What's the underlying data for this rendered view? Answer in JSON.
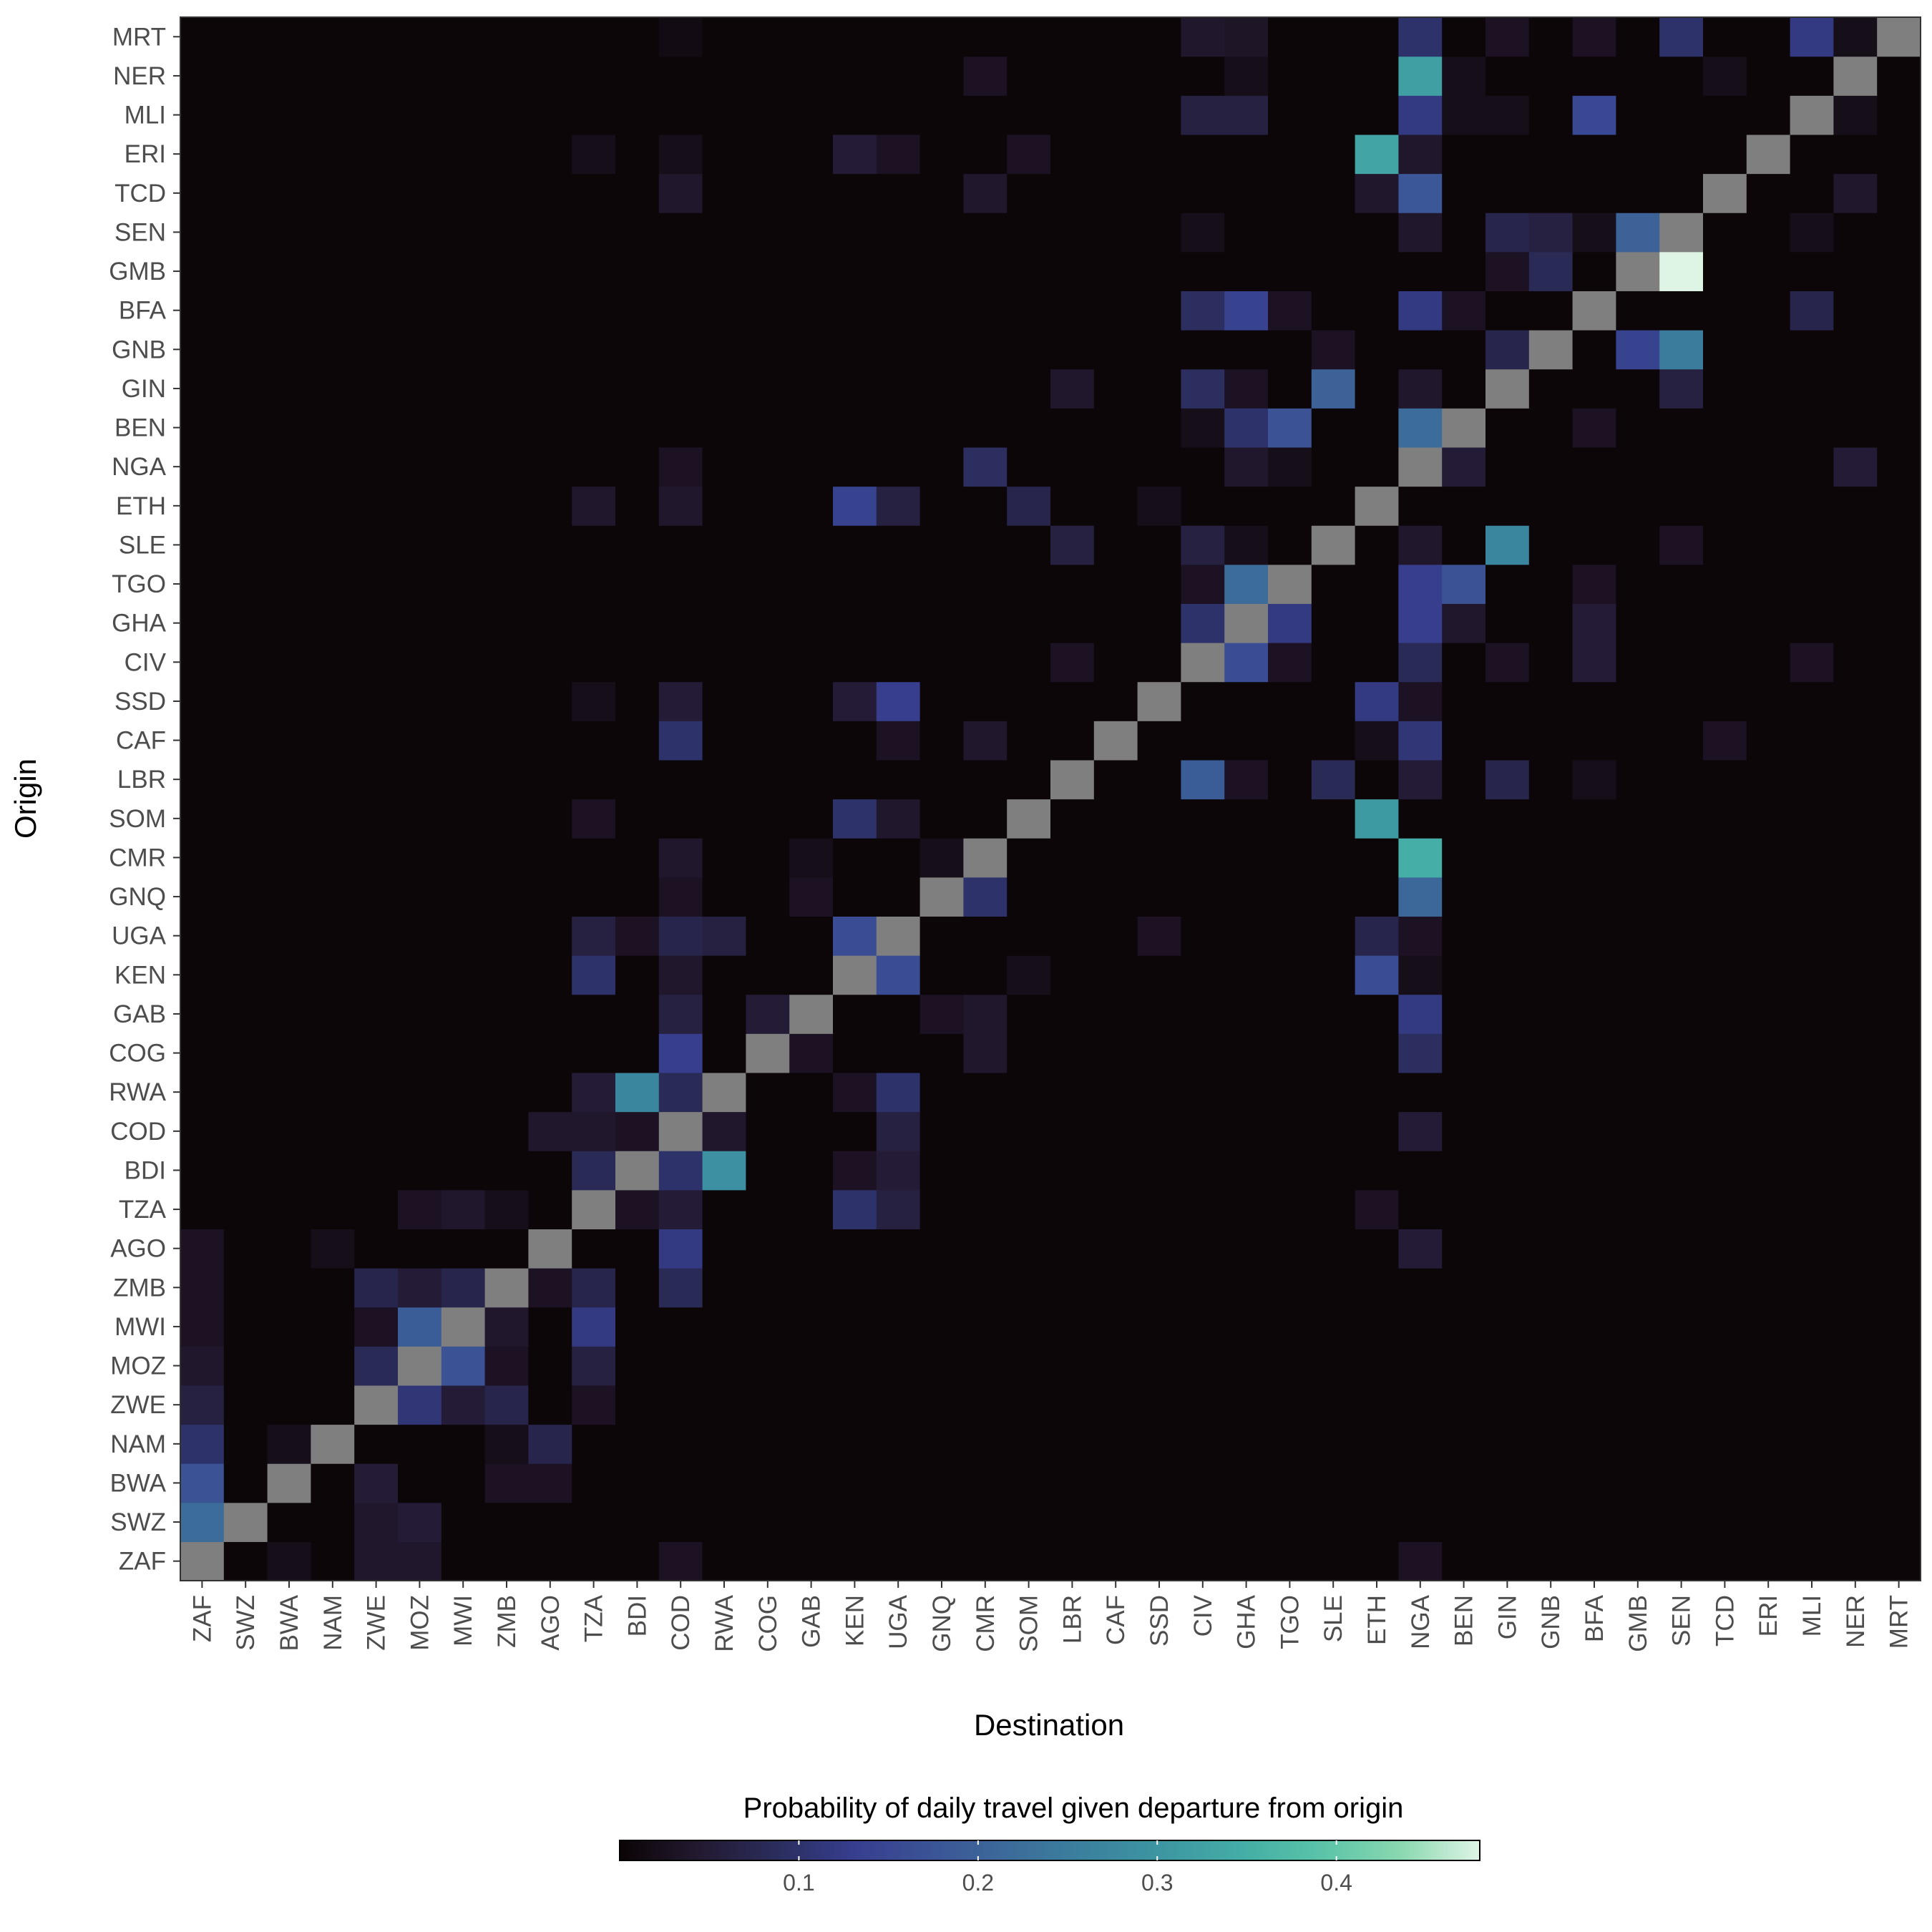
{
  "chart_data": {
    "type": "heatmap",
    "title": "",
    "xlabel": "Destination",
    "ylabel": "Origin",
    "x_categories": [
      "ZAF",
      "SWZ",
      "BWA",
      "NAM",
      "ZWE",
      "MOZ",
      "MWI",
      "ZMB",
      "AGO",
      "TZA",
      "BDI",
      "COD",
      "RWA",
      "COG",
      "GAB",
      "KEN",
      "UGA",
      "GNQ",
      "CMR",
      "SOM",
      "LBR",
      "CAF",
      "SSD",
      "CIV",
      "GHA",
      "TGO",
      "SLE",
      "ETH",
      "NGA",
      "BEN",
      "GIN",
      "GNB",
      "BFA",
      "GMB",
      "SEN",
      "TCD",
      "ERI",
      "MLI",
      "NER",
      "MRT"
    ],
    "y_categories": [
      "ZAF",
      "SWZ",
      "BWA",
      "NAM",
      "ZWE",
      "MOZ",
      "MWI",
      "ZMB",
      "AGO",
      "TZA",
      "BDI",
      "COD",
      "RWA",
      "COG",
      "GAB",
      "KEN",
      "UGA",
      "GNQ",
      "CMR",
      "SOM",
      "LBR",
      "CAF",
      "SSD",
      "CIV",
      "GHA",
      "TGO",
      "SLE",
      "ETH",
      "NGA",
      "BEN",
      "GIN",
      "GNB",
      "BFA",
      "GMB",
      "SEN",
      "TCD",
      "ERI",
      "MLI",
      "NER",
      "MRT"
    ],
    "diagonal": "NA (grey)",
    "na_color": "#7f7f7f",
    "default_value": 0.004,
    "cells": [
      [
        "MRT",
        "CIV",
        0.04
      ],
      [
        "MRT",
        "GHA",
        0.035
      ],
      [
        "MRT",
        "NGA",
        0.1
      ],
      [
        "MRT",
        "GIN",
        0.03
      ],
      [
        "MRT",
        "BFA",
        0.03
      ],
      [
        "MRT",
        "SEN",
        0.1
      ],
      [
        "MRT",
        "MLI",
        0.12
      ],
      [
        "MRT",
        "NER",
        0.02
      ],
      [
        "MRT",
        "COD",
        0.015
      ],
      [
        "NER",
        "NGA",
        0.32
      ],
      [
        "NER",
        "CMR",
        0.03
      ],
      [
        "NER",
        "GHA",
        0.02
      ],
      [
        "NER",
        "TCD",
        0.02
      ],
      [
        "NER",
        "BEN",
        0.02
      ],
      [
        "MLI",
        "CIV",
        0.06
      ],
      [
        "MLI",
        "GHA",
        0.06
      ],
      [
        "MLI",
        "NGA",
        0.12
      ],
      [
        "MLI",
        "BFA",
        0.15
      ],
      [
        "MLI",
        "BEN",
        0.02
      ],
      [
        "MLI",
        "GIN",
        0.02
      ],
      [
        "MLI",
        "NER",
        0.02
      ],
      [
        "ERI",
        "ETH",
        0.33
      ],
      [
        "ERI",
        "KEN",
        0.05
      ],
      [
        "ERI",
        "UGA",
        0.03
      ],
      [
        "ERI",
        "NGA",
        0.04
      ],
      [
        "ERI",
        "SOM",
        0.03
      ],
      [
        "ERI",
        "TZA",
        0.02
      ],
      [
        "ERI",
        "COD",
        0.02
      ],
      [
        "TCD",
        "NGA",
        0.18
      ],
      [
        "TCD",
        "ETH",
        0.04
      ],
      [
        "TCD",
        "CMR",
        0.04
      ],
      [
        "TCD",
        "COD",
        0.04
      ],
      [
        "TCD",
        "NER",
        0.04
      ],
      [
        "SEN",
        "GMB",
        0.2
      ],
      [
        "SEN",
        "GIN",
        0.07
      ],
      [
        "SEN",
        "GNB",
        0.06
      ],
      [
        "SEN",
        "NGA",
        0.04
      ],
      [
        "SEN",
        "MLI",
        0.02
      ],
      [
        "SEN",
        "CIV",
        0.02
      ],
      [
        "SEN",
        "BFA",
        0.02
      ],
      [
        "GMB",
        "SEN",
        0.48
      ],
      [
        "GMB",
        "GNB",
        0.08
      ],
      [
        "GMB",
        "GIN",
        0.03
      ],
      [
        "BFA",
        "CIV",
        0.09
      ],
      [
        "BFA",
        "GHA",
        0.14
      ],
      [
        "BFA",
        "NGA",
        0.12
      ],
      [
        "BFA",
        "MLI",
        0.07
      ],
      [
        "BFA",
        "TGO",
        0.03
      ],
      [
        "BFA",
        "BEN",
        0.03
      ],
      [
        "GNB",
        "SEN",
        0.25
      ],
      [
        "GNB",
        "GMB",
        0.14
      ],
      [
        "GNB",
        "GIN",
        0.07
      ],
      [
        "GNB",
        "SLE",
        0.03
      ],
      [
        "GIN",
        "SLE",
        0.2
      ],
      [
        "GIN",
        "CIV",
        0.09
      ],
      [
        "GIN",
        "SEN",
        0.06
      ],
      [
        "GIN",
        "LBR",
        0.04
      ],
      [
        "GIN",
        "NGA",
        0.04
      ],
      [
        "GIN",
        "GHA",
        0.03
      ],
      [
        "BEN",
        "NGA",
        0.22
      ],
      [
        "BEN",
        "TGO",
        0.17
      ],
      [
        "BEN",
        "GHA",
        0.1
      ],
      [
        "BEN",
        "BFA",
        0.03
      ],
      [
        "BEN",
        "CIV",
        0.02
      ],
      [
        "NGA",
        "CMR",
        0.09
      ],
      [
        "NGA",
        "BEN",
        0.05
      ],
      [
        "NGA",
        "GHA",
        0.04
      ],
      [
        "NGA",
        "NER",
        0.05
      ],
      [
        "NGA",
        "COD",
        0.03
      ],
      [
        "NGA",
        "TGO",
        0.02
      ],
      [
        "ETH",
        "KEN",
        0.14
      ],
      [
        "ETH",
        "UGA",
        0.06
      ],
      [
        "ETH",
        "SOM",
        0.07
      ],
      [
        "ETH",
        "TZA",
        0.04
      ],
      [
        "ETH",
        "COD",
        0.04
      ],
      [
        "ETH",
        "SSD",
        0.02
      ],
      [
        "SLE",
        "GIN",
        0.27
      ],
      [
        "SLE",
        "LBR",
        0.06
      ],
      [
        "SLE",
        "CIV",
        0.06
      ],
      [
        "SLE",
        "NGA",
        0.04
      ],
      [
        "SLE",
        "SEN",
        0.03
      ],
      [
        "SLE",
        "GHA",
        0.02
      ],
      [
        "TGO",
        "GHA",
        0.22
      ],
      [
        "TGO",
        "BEN",
        0.17
      ],
      [
        "TGO",
        "NGA",
        0.13
      ],
      [
        "TGO",
        "CIV",
        0.03
      ],
      [
        "TGO",
        "BFA",
        0.03
      ],
      [
        "GHA",
        "TGO",
        0.12
      ],
      [
        "GHA",
        "CIV",
        0.1
      ],
      [
        "GHA",
        "NGA",
        0.13
      ],
      [
        "GHA",
        "BEN",
        0.04
      ],
      [
        "GHA",
        "BFA",
        0.05
      ],
      [
        "CIV",
        "GHA",
        0.16
      ],
      [
        "CIV",
        "NGA",
        0.08
      ],
      [
        "CIV",
        "BFA",
        0.05
      ],
      [
        "CIV",
        "GIN",
        0.03
      ],
      [
        "CIV",
        "LBR",
        0.03
      ],
      [
        "CIV",
        "MLI",
        0.03
      ],
      [
        "CIV",
        "TGO",
        0.03
      ],
      [
        "SSD",
        "UGA",
        0.13
      ],
      [
        "SSD",
        "ETH",
        0.12
      ],
      [
        "SSD",
        "KEN",
        0.05
      ],
      [
        "SSD",
        "COD",
        0.05
      ],
      [
        "SSD",
        "NGA",
        0.03
      ],
      [
        "SSD",
        "TZA",
        0.02
      ],
      [
        "CAF",
        "COD",
        0.1
      ],
      [
        "CAF",
        "CMR",
        0.04
      ],
      [
        "CAF",
        "NGA",
        0.11
      ],
      [
        "CAF",
        "UGA",
        0.03
      ],
      [
        "CAF",
        "TCD",
        0.03
      ],
      [
        "CAF",
        "ETH",
        0.02
      ],
      [
        "LBR",
        "CIV",
        0.19
      ],
      [
        "LBR",
        "SLE",
        0.08
      ],
      [
        "LBR",
        "GIN",
        0.07
      ],
      [
        "LBR",
        "NGA",
        0.05
      ],
      [
        "LBR",
        "GHA",
        0.03
      ],
      [
        "LBR",
        "BFA",
        0.02
      ],
      [
        "SOM",
        "ETH",
        0.31
      ],
      [
        "SOM",
        "KEN",
        0.1
      ],
      [
        "SOM",
        "UGA",
        0.04
      ],
      [
        "SOM",
        "TZA",
        0.03
      ],
      [
        "CMR",
        "NGA",
        0.35
      ],
      [
        "CMR",
        "GNQ",
        0.02
      ],
      [
        "CMR",
        "COD",
        0.04
      ],
      [
        "CMR",
        "GAB",
        0.02
      ],
      [
        "GNQ",
        "CMR",
        0.1
      ],
      [
        "GNQ",
        "NGA",
        0.21
      ],
      [
        "GNQ",
        "GAB",
        0.03
      ],
      [
        "GNQ",
        "COD",
        0.03
      ],
      [
        "UGA",
        "KEN",
        0.16
      ],
      [
        "UGA",
        "ETH",
        0.07
      ],
      [
        "UGA",
        "TZA",
        0.06
      ],
      [
        "UGA",
        "COD",
        0.07
      ],
      [
        "UGA",
        "RWA",
        0.06
      ],
      [
        "UGA",
        "BDI",
        0.03
      ],
      [
        "UGA",
        "SSD",
        0.03
      ],
      [
        "UGA",
        "NGA",
        0.03
      ],
      [
        "KEN",
        "UGA",
        0.16
      ],
      [
        "KEN",
        "ETH",
        0.16
      ],
      [
        "KEN",
        "TZA",
        0.1
      ],
      [
        "KEN",
        "COD",
        0.04
      ],
      [
        "KEN",
        "SOM",
        0.02
      ],
      [
        "KEN",
        "NGA",
        0.02
      ],
      [
        "GAB",
        "CMR",
        0.04
      ],
      [
        "GAB",
        "COG",
        0.05
      ],
      [
        "GAB",
        "COD",
        0.06
      ],
      [
        "GAB",
        "NGA",
        0.12
      ],
      [
        "GAB",
        "GNQ",
        0.03
      ],
      [
        "COG",
        "COD",
        0.13
      ],
      [
        "COG",
        "GAB",
        0.03
      ],
      [
        "COG",
        "NGA",
        0.09
      ],
      [
        "COG",
        "CMR",
        0.04
      ],
      [
        "RWA",
        "BDI",
        0.27
      ],
      [
        "RWA",
        "COD",
        0.08
      ],
      [
        "RWA",
        "UGA",
        0.1
      ],
      [
        "RWA",
        "TZA",
        0.05
      ],
      [
        "RWA",
        "KEN",
        0.03
      ],
      [
        "COD",
        "UGA",
        0.06
      ],
      [
        "COD",
        "NGA",
        0.05
      ],
      [
        "COD",
        "TZA",
        0.04
      ],
      [
        "COD",
        "AGO",
        0.04
      ],
      [
        "COD",
        "BDI",
        0.03
      ],
      [
        "COD",
        "RWA",
        0.04
      ],
      [
        "BDI",
        "RWA",
        0.29
      ],
      [
        "BDI",
        "COD",
        0.1
      ],
      [
        "BDI",
        "TZA",
        0.08
      ],
      [
        "BDI",
        "UGA",
        0.05
      ],
      [
        "BDI",
        "KEN",
        0.03
      ],
      [
        "TZA",
        "COD",
        0.05
      ],
      [
        "TZA",
        "KEN",
        0.1
      ],
      [
        "TZA",
        "UGA",
        0.06
      ],
      [
        "TZA",
        "MWI",
        0.04
      ],
      [
        "TZA",
        "MOZ",
        0.03
      ],
      [
        "TZA",
        "ZMB",
        0.02
      ],
      [
        "TZA",
        "BDI",
        0.03
      ],
      [
        "TZA",
        "ETH",
        0.03
      ],
      [
        "AGO",
        "COD",
        0.12
      ],
      [
        "AGO",
        "NGA",
        0.05
      ],
      [
        "AGO",
        "ZAF",
        0.03
      ],
      [
        "AGO",
        "NAM",
        0.02
      ],
      [
        "ZMB",
        "ZWE",
        0.07
      ],
      [
        "ZMB",
        "MOZ",
        0.05
      ],
      [
        "ZMB",
        "MWI",
        0.07
      ],
      [
        "ZMB",
        "TZA",
        0.07
      ],
      [
        "ZMB",
        "COD",
        0.08
      ],
      [
        "ZMB",
        "ZAF",
        0.03
      ],
      [
        "ZMB",
        "AGO",
        0.03
      ],
      [
        "MWI",
        "MOZ",
        0.19
      ],
      [
        "MWI",
        "TZA",
        0.12
      ],
      [
        "MWI",
        "ZAF",
        0.03
      ],
      [
        "MWI",
        "ZMB",
        0.04
      ],
      [
        "MWI",
        "ZWE",
        0.03
      ],
      [
        "MOZ",
        "MWI",
        0.17
      ],
      [
        "MOZ",
        "ZWE",
        0.08
      ],
      [
        "MOZ",
        "ZAF",
        0.04
      ],
      [
        "MOZ",
        "TZA",
        0.06
      ],
      [
        "MOZ",
        "ZMB",
        0.03
      ],
      [
        "ZWE",
        "MOZ",
        0.11
      ],
      [
        "ZWE",
        "ZAF",
        0.06
      ],
      [
        "ZWE",
        "ZMB",
        0.07
      ],
      [
        "ZWE",
        "MWI",
        0.05
      ],
      [
        "ZWE",
        "TZA",
        0.03
      ],
      [
        "NAM",
        "ZAF",
        0.1
      ],
      [
        "NAM",
        "AGO",
        0.07
      ],
      [
        "NAM",
        "ZMB",
        0.02
      ],
      [
        "NAM",
        "BWA",
        0.02
      ],
      [
        "BWA",
        "ZAF",
        0.17
      ],
      [
        "BWA",
        "ZWE",
        0.05
      ],
      [
        "BWA",
        "ZMB",
        0.03
      ],
      [
        "BWA",
        "AGO",
        0.03
      ],
      [
        "SWZ",
        "ZAF",
        0.22
      ],
      [
        "SWZ",
        "MOZ",
        0.05
      ],
      [
        "SWZ",
        "ZWE",
        0.04
      ],
      [
        "ZAF",
        "ZWE",
        0.04
      ],
      [
        "ZAF",
        "MOZ",
        0.04
      ],
      [
        "ZAF",
        "COD",
        0.03
      ],
      [
        "ZAF",
        "NGA",
        0.03
      ],
      [
        "ZAF",
        "BWA",
        0.02
      ]
    ],
    "colorbar": {
      "title": "Probability of daily travel given departure from origin",
      "min": 0,
      "max": 0.48,
      "ticks": [
        0.1,
        0.2,
        0.3,
        0.4
      ],
      "tick_labels": [
        "0.1",
        "0.2",
        "0.3",
        "0.4"
      ],
      "colors": [
        "#0b0405",
        "#231930",
        "#2a2d5c",
        "#373e8f",
        "#3b5496",
        "#3c6c9a",
        "#3b829e",
        "#3d98a2",
        "#45aea6",
        "#5bc4a8",
        "#8ad8b0",
        "#def5e5"
      ]
    },
    "legend_position": "bottom"
  }
}
